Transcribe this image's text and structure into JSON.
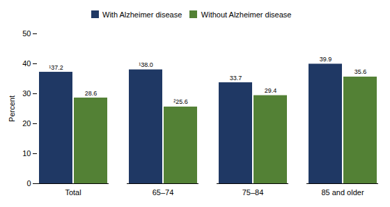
{
  "chart_data": {
    "type": "bar",
    "categories": [
      "Total",
      "65–74",
      "75–84",
      "85 and older"
    ],
    "series": [
      {
        "name": "With Alzheimer disease",
        "color": "#1f3864",
        "values": [
          37.2,
          38.0,
          33.7,
          39.9
        ],
        "value_labels": [
          "¹37.2",
          "¹38.0",
          "33.7",
          "39.9"
        ]
      },
      {
        "name": "Without Alzheimer disease",
        "color": "#538135",
        "values": [
          28.6,
          25.6,
          29.4,
          35.6
        ],
        "value_labels": [
          "28.6",
          "²25.6",
          "29.4",
          "35.6"
        ]
      }
    ],
    "ylabel": "Percent",
    "ylim": [
      0,
      50
    ],
    "yticks": [
      0,
      10,
      20,
      30,
      40,
      50
    ],
    "grid": false,
    "legend": "top",
    "data_labels": true
  }
}
